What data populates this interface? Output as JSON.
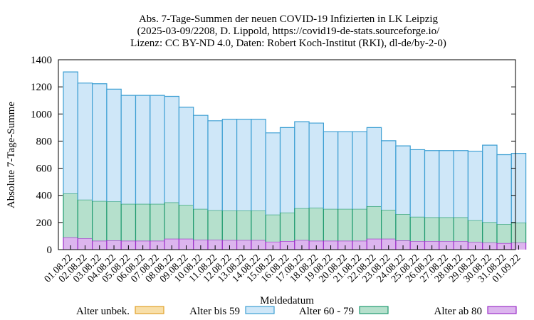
{
  "chart_data": {
    "type": "bar",
    "stacked": true,
    "title": [
      "Abs. 7-Tage-Summen der neuen COVID-19 Infizierten in LK Leipzig",
      "(2025-03-09/2208, D. Lippold, https://covid19-de-stats.sourceforge.io/",
      "Lizenz: CC BY-ND 4.0, Daten: Robert Koch-Institut (RKI), dl-de/by-2-0)"
    ],
    "xlabel": "Meldedatum",
    "ylabel": "Absolute 7-Tage-Summe",
    "ylim": [
      0,
      1400
    ],
    "yticks": [
      0,
      200,
      400,
      600,
      800,
      1000,
      1200,
      1400
    ],
    "grid": false,
    "legend_position": "bottom",
    "categories": [
      "01.08.22",
      "02.08.22",
      "03.08.22",
      "04.08.22",
      "05.08.22",
      "06.08.22",
      "07.08.22",
      "08.08.22",
      "09.08.22",
      "10.08.22",
      "11.08.22",
      "12.08.22",
      "13.08.22",
      "14.08.22",
      "15.08.22",
      "16.08.22",
      "17.08.22",
      "18.08.22",
      "19.08.22",
      "20.08.22",
      "21.08.22",
      "22.08.22",
      "23.08.22",
      "24.08.22",
      "25.08.22",
      "26.08.22",
      "27.08.22",
      "28.08.22",
      "29.08.22",
      "30.08.22",
      "31.08.22",
      "01.09.22"
    ],
    "series": [
      {
        "name": "Alter ab 80",
        "color": "#dcb5ee",
        "stroke": "#9b2fc8",
        "values": [
          90,
          83,
          65,
          68,
          65,
          65,
          65,
          80,
          80,
          72,
          72,
          70,
          70,
          70,
          58,
          63,
          70,
          65,
          65,
          65,
          65,
          80,
          80,
          67,
          62,
          62,
          62,
          62,
          55,
          50,
          48,
          50
        ]
      },
      {
        "name": "Alter 60 - 79",
        "color": "#b5e0cc",
        "stroke": "#1f9a6f",
        "values": [
          323,
          285,
          293,
          287,
          272,
          272,
          272,
          268,
          250,
          228,
          218,
          218,
          218,
          218,
          200,
          210,
          235,
          243,
          235,
          235,
          235,
          240,
          213,
          195,
          180,
          176,
          176,
          176,
          161,
          152,
          140,
          148
        ]
      },
      {
        "name": "Alter bis 59",
        "color": "#cfe7f8",
        "stroke": "#3d9fd3",
        "values": [
          897,
          860,
          865,
          828,
          800,
          800,
          800,
          782,
          720,
          690,
          660,
          673,
          673,
          673,
          603,
          627,
          638,
          625,
          570,
          570,
          570,
          580,
          510,
          503,
          495,
          492,
          492,
          492,
          510,
          568,
          512,
          512
        ]
      },
      {
        "name": "Alter unbek.",
        "color": "#f8dfa8",
        "stroke": "#e0a12a",
        "values": [
          0,
          0,
          0,
          0,
          0,
          0,
          0,
          0,
          0,
          0,
          0,
          0,
          0,
          0,
          0,
          0,
          0,
          0,
          0,
          0,
          0,
          0,
          0,
          0,
          0,
          0,
          0,
          0,
          0,
          0,
          0,
          0
        ]
      }
    ],
    "legend": [
      "Alter unbek.",
      "Alter bis 59",
      "Alter 60 - 79",
      "Alter ab 80"
    ]
  }
}
